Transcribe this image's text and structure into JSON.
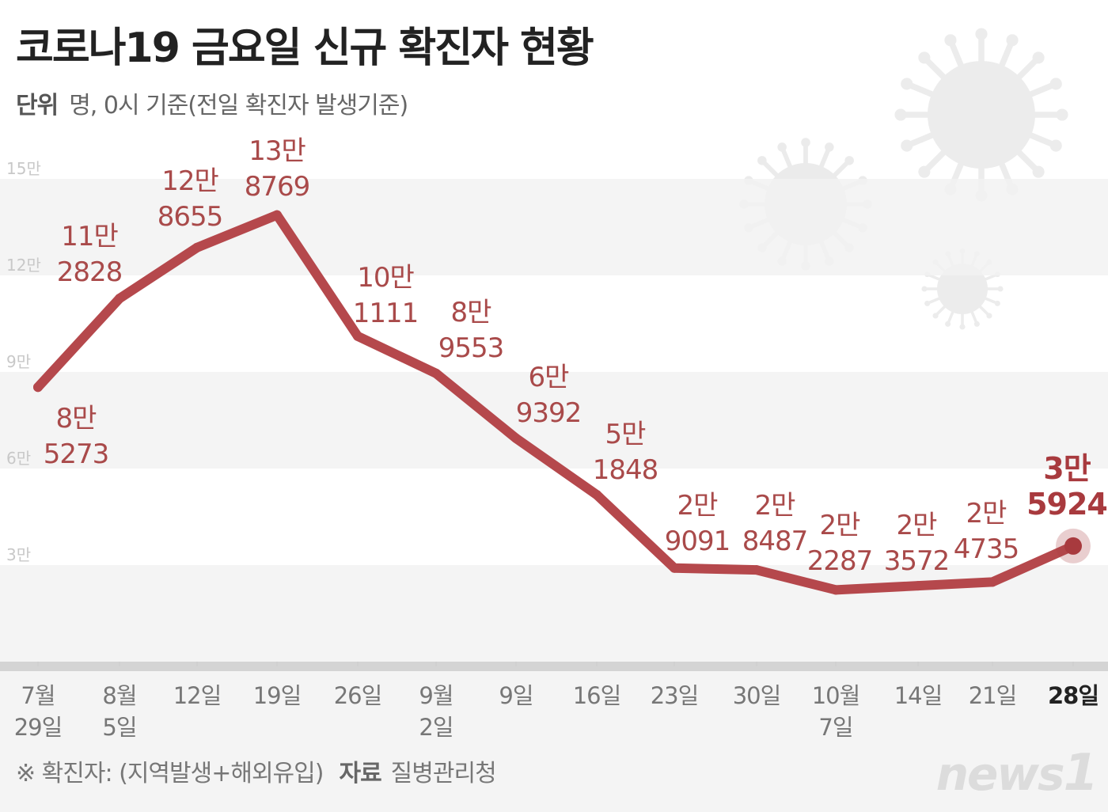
{
  "title": "코로나19 금요일 신규 확진자 현황",
  "unit_label": "단위",
  "unit_text": "명, 0시 기준(전일 확진자 발생기준)",
  "footnote": "※ 확진자: (지역발생+해외유입)",
  "source_label": "자료",
  "source": "질병관리청",
  "logo": "news1",
  "colors": {
    "line": "#b5484c",
    "label": "#a94a4a",
    "highlight": "#a83a3e",
    "band": "#f2f2f2",
    "axis": "#d4d4d4"
  },
  "chart_data": {
    "type": "line",
    "title": "코로나19 금요일 신규 확진자 현황",
    "ylim": [
      0,
      150000
    ],
    "yticks": [
      {
        "v": 150000,
        "label": "15만"
      },
      {
        "v": 120000,
        "label": "12만"
      },
      {
        "v": 90000,
        "label": "9만"
      },
      {
        "v": 60000,
        "label": "6만"
      },
      {
        "v": 30000,
        "label": "3만"
      }
    ],
    "categories": [
      [
        "7월",
        "29일"
      ],
      [
        "8월",
        "5일"
      ],
      [
        "12일",
        ""
      ],
      [
        "19일",
        ""
      ],
      [
        "26일",
        ""
      ],
      [
        "9월",
        "2일"
      ],
      [
        "9일",
        ""
      ],
      [
        "16일",
        ""
      ],
      [
        "23일",
        ""
      ],
      [
        "30일",
        ""
      ],
      [
        "10월",
        "7일"
      ],
      [
        "14일",
        ""
      ],
      [
        "21일",
        ""
      ],
      [
        "28일",
        ""
      ]
    ],
    "values": [
      85273,
      112828,
      128655,
      138769,
      101111,
      89553,
      69392,
      51848,
      29091,
      28487,
      22287,
      23572,
      24735,
      35924
    ],
    "data_labels": [
      [
        "8만",
        "5273"
      ],
      [
        "11만",
        "2828"
      ],
      [
        "12만",
        "8655"
      ],
      [
        "13만",
        "8769"
      ],
      [
        "10만",
        "1111"
      ],
      [
        "8만",
        "9553"
      ],
      [
        "6만",
        "9392"
      ],
      [
        "5만",
        "1848"
      ],
      [
        "2만",
        "9091"
      ],
      [
        "2만",
        "8487"
      ],
      [
        "2만",
        "2287"
      ],
      [
        "2만",
        "3572"
      ],
      [
        "2만",
        "4735"
      ],
      [
        "3만",
        "5924"
      ]
    ],
    "highlight_index": 13,
    "grid": "bands"
  }
}
